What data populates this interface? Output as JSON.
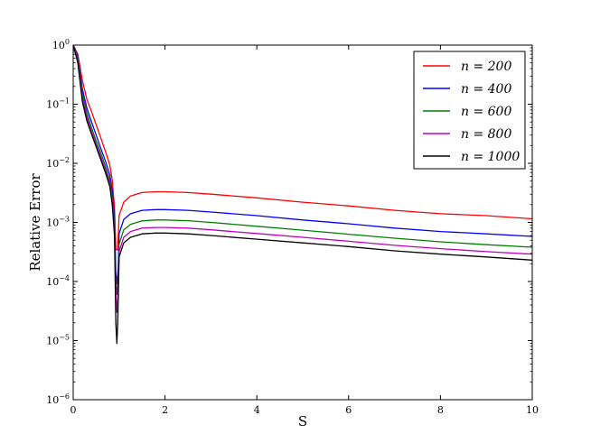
{
  "chart_data": {
    "type": "line",
    "title": "",
    "xlabel": "S",
    "ylabel": "Relative Error",
    "xlim": [
      0,
      10
    ],
    "ylim": [
      1e-06,
      1
    ],
    "yscale": "log",
    "grid": false,
    "legend_position": "top-right",
    "x_ticks": [
      {
        "value": 0,
        "label": "0"
      },
      {
        "value": 2,
        "label": "2"
      },
      {
        "value": 4,
        "label": "4"
      },
      {
        "value": 6,
        "label": "6"
      },
      {
        "value": 8,
        "label": "8"
      },
      {
        "value": 10,
        "label": "10"
      }
    ],
    "y_ticks": [
      {
        "exp": 0,
        "base": "10",
        "sup": "0"
      },
      {
        "exp": -1,
        "base": "10",
        "sup": "−1"
      },
      {
        "exp": -2,
        "base": "10",
        "sup": "−2"
      },
      {
        "exp": -3,
        "base": "10",
        "sup": "−3"
      },
      {
        "exp": -4,
        "base": "10",
        "sup": "−4"
      },
      {
        "exp": -5,
        "base": "10",
        "sup": "−5"
      },
      {
        "exp": -6,
        "base": "10",
        "sup": "−6"
      }
    ],
    "series": [
      {
        "name": "n = 200",
        "color": "#ff0000",
        "points": [
          [
            0.0,
            1.0
          ],
          [
            0.1,
            0.7
          ],
          [
            0.2,
            0.25
          ],
          [
            0.3,
            0.12
          ],
          [
            0.4,
            0.075
          ],
          [
            0.5,
            0.045
          ],
          [
            0.6,
            0.027
          ],
          [
            0.7,
            0.016
          ],
          [
            0.8,
            0.0093
          ],
          [
            0.85,
            0.0052
          ],
          [
            0.9,
            0.0018
          ],
          [
            0.93,
            0.00035
          ],
          [
            0.97,
            0.00034
          ],
          [
            1.0,
            0.0013
          ],
          [
            1.1,
            0.0022
          ],
          [
            1.25,
            0.0028
          ],
          [
            1.5,
            0.0032
          ],
          [
            1.8,
            0.0033
          ],
          [
            2.0,
            0.0033
          ],
          [
            2.5,
            0.0032
          ],
          [
            3.0,
            0.003
          ],
          [
            4.0,
            0.0026
          ],
          [
            5.0,
            0.0022
          ],
          [
            6.0,
            0.0019
          ],
          [
            7.0,
            0.0016
          ],
          [
            8.0,
            0.0014
          ],
          [
            9.0,
            0.0013
          ],
          [
            10.0,
            0.00115
          ]
        ]
      },
      {
        "name": "n = 400",
        "color": "#0000ff",
        "points": [
          [
            0.0,
            1.0
          ],
          [
            0.1,
            0.65
          ],
          [
            0.2,
            0.18
          ],
          [
            0.3,
            0.085
          ],
          [
            0.4,
            0.05
          ],
          [
            0.5,
            0.03
          ],
          [
            0.6,
            0.018
          ],
          [
            0.7,
            0.011
          ],
          [
            0.8,
            0.0063
          ],
          [
            0.85,
            0.0034
          ],
          [
            0.9,
            0.0012
          ],
          [
            0.93,
            0.00014
          ],
          [
            0.95,
            9e-05
          ],
          [
            0.98,
            0.00017
          ],
          [
            1.0,
            0.00065
          ],
          [
            1.1,
            0.00112
          ],
          [
            1.25,
            0.0014
          ],
          [
            1.5,
            0.0016
          ],
          [
            1.8,
            0.00165
          ],
          [
            2.0,
            0.00165
          ],
          [
            2.5,
            0.0016
          ],
          [
            3.0,
            0.0015
          ],
          [
            4.0,
            0.0013
          ],
          [
            5.0,
            0.0011
          ],
          [
            6.0,
            0.00095
          ],
          [
            7.0,
            0.0008
          ],
          [
            8.0,
            0.0007
          ],
          [
            9.0,
            0.00064
          ],
          [
            10.0,
            0.00058
          ]
        ]
      },
      {
        "name": "n = 600",
        "color": "#008000",
        "points": [
          [
            0.0,
            1.0
          ],
          [
            0.1,
            0.6
          ],
          [
            0.2,
            0.15
          ],
          [
            0.3,
            0.07
          ],
          [
            0.4,
            0.04
          ],
          [
            0.5,
            0.024
          ],
          [
            0.6,
            0.015
          ],
          [
            0.7,
            0.009
          ],
          [
            0.8,
            0.0051
          ],
          [
            0.85,
            0.0027
          ],
          [
            0.9,
            0.0009
          ],
          [
            0.93,
            0.0001
          ],
          [
            0.95,
            6e-05
          ],
          [
            0.98,
            0.00011
          ],
          [
            1.0,
            0.00043
          ],
          [
            1.1,
            0.00075
          ],
          [
            1.25,
            0.00093
          ],
          [
            1.5,
            0.00106
          ],
          [
            1.8,
            0.0011
          ],
          [
            2.0,
            0.0011
          ],
          [
            2.5,
            0.00107
          ],
          [
            3.0,
            0.001
          ],
          [
            4.0,
            0.00086
          ],
          [
            5.0,
            0.00074
          ],
          [
            6.0,
            0.00063
          ],
          [
            7.0,
            0.00054
          ],
          [
            8.0,
            0.00047
          ],
          [
            9.0,
            0.00042
          ],
          [
            10.0,
            0.00038
          ]
        ]
      },
      {
        "name": "n = 800",
        "color": "#bf00bf",
        "points": [
          [
            0.0,
            1.0
          ],
          [
            0.1,
            0.55
          ],
          [
            0.2,
            0.13
          ],
          [
            0.3,
            0.06
          ],
          [
            0.4,
            0.035
          ],
          [
            0.5,
            0.021
          ],
          [
            0.6,
            0.013
          ],
          [
            0.7,
            0.0078
          ],
          [
            0.8,
            0.0045
          ],
          [
            0.85,
            0.0023
          ],
          [
            0.9,
            0.0007
          ],
          [
            0.93,
            6e-05
          ],
          [
            0.95,
            3e-05
          ],
          [
            0.98,
            7e-05
          ],
          [
            1.0,
            0.00032
          ],
          [
            1.1,
            0.00056
          ],
          [
            1.25,
            0.0007
          ],
          [
            1.5,
            0.0008
          ],
          [
            1.8,
            0.00082
          ],
          [
            2.0,
            0.00082
          ],
          [
            2.5,
            0.0008
          ],
          [
            3.0,
            0.00075
          ],
          [
            4.0,
            0.00065
          ],
          [
            5.0,
            0.00056
          ],
          [
            6.0,
            0.00048
          ],
          [
            7.0,
            0.00041
          ],
          [
            8.0,
            0.00036
          ],
          [
            9.0,
            0.00032
          ],
          [
            10.0,
            0.00029
          ]
        ]
      },
      {
        "name": "n = 1000",
        "color": "#000000",
        "points": [
          [
            0.0,
            1.0
          ],
          [
            0.1,
            0.5
          ],
          [
            0.2,
            0.11
          ],
          [
            0.3,
            0.052
          ],
          [
            0.4,
            0.031
          ],
          [
            0.5,
            0.019
          ],
          [
            0.6,
            0.0115
          ],
          [
            0.7,
            0.007
          ],
          [
            0.8,
            0.004
          ],
          [
            0.85,
            0.002
          ],
          [
            0.9,
            0.0006
          ],
          [
            0.93,
            2e-05
          ],
          [
            0.95,
            9e-06
          ],
          [
            0.97,
            2e-05
          ],
          [
            1.0,
            0.00026
          ],
          [
            1.1,
            0.00045
          ],
          [
            1.25,
            0.00056
          ],
          [
            1.5,
            0.00064
          ],
          [
            1.8,
            0.00066
          ],
          [
            2.0,
            0.00066
          ],
          [
            2.5,
            0.00064
          ],
          [
            3.0,
            0.0006
          ],
          [
            4.0,
            0.00052
          ],
          [
            5.0,
            0.00045
          ],
          [
            6.0,
            0.00039
          ],
          [
            7.0,
            0.00033
          ],
          [
            8.0,
            0.00029
          ],
          [
            9.0,
            0.00026
          ],
          [
            10.0,
            0.00023
          ]
        ]
      }
    ]
  }
}
